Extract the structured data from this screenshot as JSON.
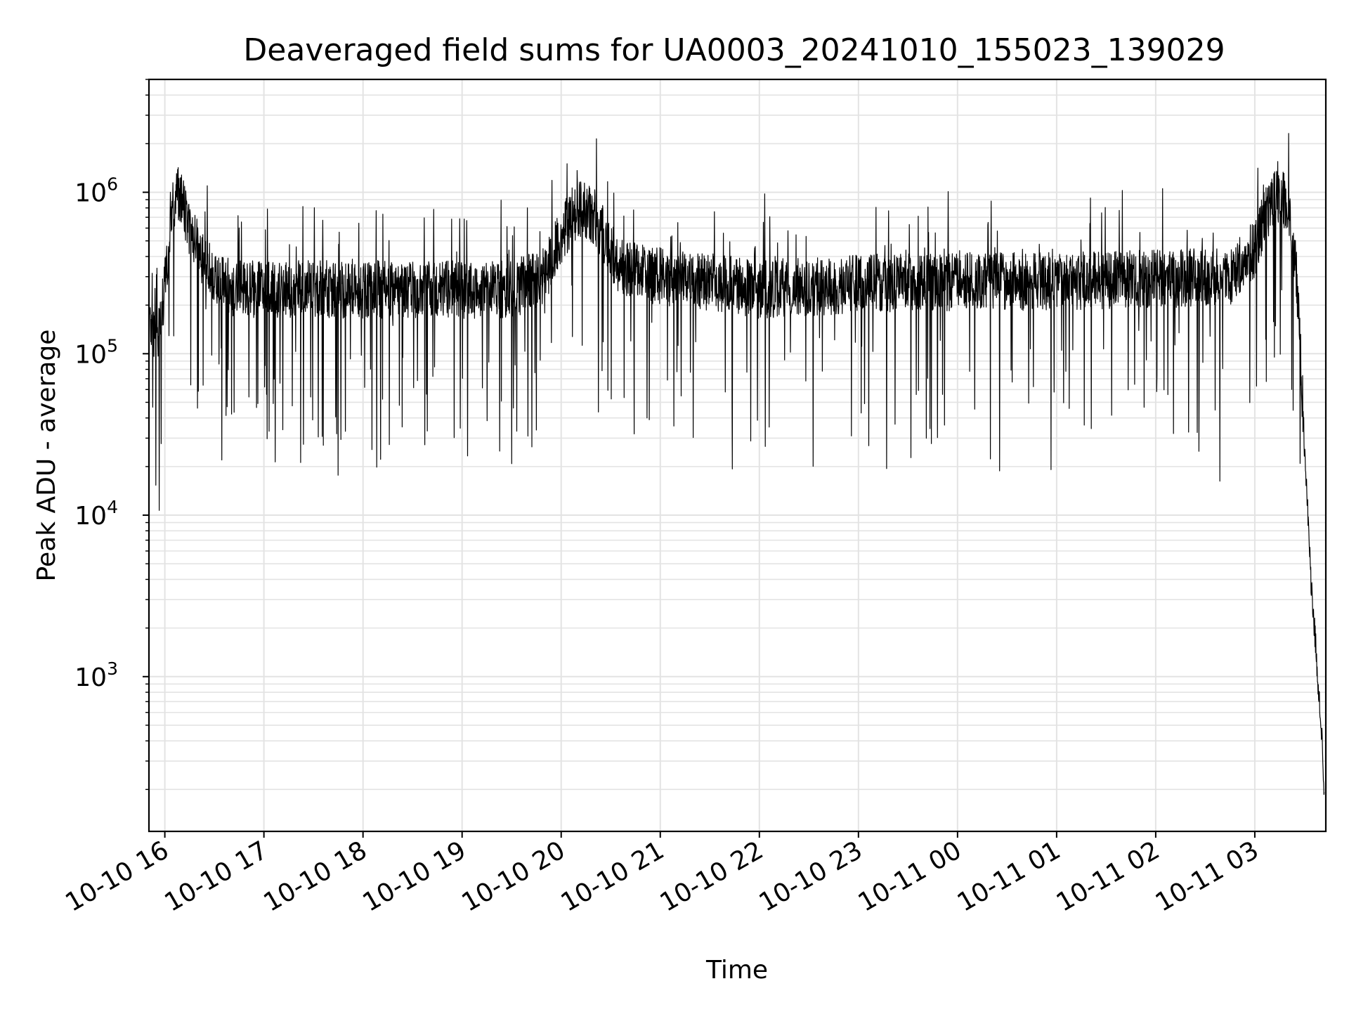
{
  "chart_data": {
    "type": "line",
    "title": "Deaveraged field sums for UA0003_20241010_155023_139029",
    "xlabel": "Time",
    "ylabel": "Peak ADU - average",
    "yscale": "log",
    "ylim": [
      110,
      5000000
    ],
    "xlim": [
      "2024-10-10 15:50:23",
      "2024-10-11 03:43:00"
    ],
    "grid": true,
    "line_color": "#000000",
    "x_ticks": [
      "10-10 16",
      "10-10 17",
      "10-10 18",
      "10-10 19",
      "10-10 20",
      "10-10 21",
      "10-10 22",
      "10-10 23",
      "10-11 00",
      "10-11 01",
      "10-11 02",
      "10-11 03"
    ],
    "y_ticks": [
      {
        "base": "10",
        "exp": "3",
        "value": 1000
      },
      {
        "base": "10",
        "exp": "4",
        "value": 10000
      },
      {
        "base": "10",
        "exp": "5",
        "value": 100000
      },
      {
        "base": "10",
        "exp": "6",
        "value": 1000000
      }
    ],
    "series": [
      {
        "x": [
          "2024-10-10 15:51",
          "2024-10-10 15:56",
          "2024-10-10 16:00",
          "2024-10-10 16:04",
          "2024-10-10 16:08",
          "2024-10-10 16:15",
          "2024-10-10 16:25",
          "2024-10-10 16:40",
          "2024-10-10 17:00",
          "2024-10-10 17:30",
          "2024-10-10 18:00",
          "2024-10-10 18:30",
          "2024-10-10 19:00",
          "2024-10-10 19:30",
          "2024-10-10 19:50",
          "2024-10-10 20:00",
          "2024-10-10 20:10",
          "2024-10-10 20:20",
          "2024-10-10 20:35",
          "2024-10-10 21:00",
          "2024-10-10 21:30",
          "2024-10-10 22:00",
          "2024-10-10 23:00",
          "2024-10-11 00:00",
          "2024-10-11 01:00",
          "2024-10-11 02:00",
          "2024-10-11 02:45",
          "2024-10-11 03:00",
          "2024-10-11 03:10",
          "2024-10-11 03:20",
          "2024-10-11 03:25",
          "2024-10-11 03:30",
          "2024-10-11 03:34",
          "2024-10-11 03:37",
          "2024-10-11 03:39",
          "2024-10-11 03:41",
          "2024-10-11 03:42"
        ],
        "values": [
          150000,
          140000,
          250000,
          800000,
          1000000,
          600000,
          350000,
          250000,
          250000,
          250000,
          250000,
          250000,
          250000,
          250000,
          300000,
          550000,
          800000,
          700000,
          350000,
          300000,
          280000,
          250000,
          270000,
          280000,
          280000,
          290000,
          300000,
          450000,
          900000,
          900000,
          350000,
          30000,
          4000,
          1500,
          700,
          400,
          180
        ]
      }
    ]
  }
}
